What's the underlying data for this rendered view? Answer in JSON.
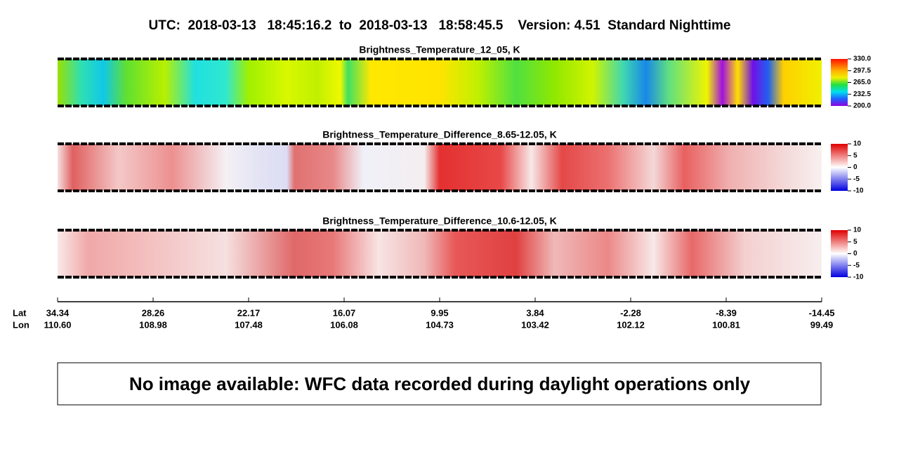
{
  "header": {
    "title": "UTC:  2018-03-13   18:45:16.2  to  2018-03-13   18:58:45.5    Version: 4.51  Standard Nighttime"
  },
  "panels": [
    {
      "title": "Brightness_Temperature_12_05, K",
      "colorbar_labels": [
        "330.0",
        "297.5",
        "265.0",
        "232.5",
        "200.0"
      ]
    },
    {
      "title": "Brightness_Temperature_Difference_8.65-12.05, K",
      "colorbar_labels": [
        "10",
        "5",
        "0",
        "-5",
        "-10"
      ]
    },
    {
      "title": "Brightness_Temperature_Difference_10.6-12.05, K",
      "colorbar_labels": [
        "10",
        "5",
        "0",
        "-5",
        "-10"
      ]
    }
  ],
  "axis": {
    "row_labels": [
      "Lat",
      "Lon"
    ],
    "ticks": [
      {
        "lat": "34.34",
        "lon": "110.60"
      },
      {
        "lat": "28.26",
        "lon": "108.98"
      },
      {
        "lat": "22.17",
        "lon": "107.48"
      },
      {
        "lat": "16.07",
        "lon": "106.08"
      },
      {
        "lat": "9.95",
        "lon": "104.73"
      },
      {
        "lat": "3.84",
        "lon": "103.42"
      },
      {
        "lat": "-2.28",
        "lon": "102.12"
      },
      {
        "lat": "-8.39",
        "lon": "100.81"
      },
      {
        "lat": "-14.45",
        "lon": "99.49"
      }
    ]
  },
  "notice": "No image available: WFC data recorded during daylight operations only"
}
